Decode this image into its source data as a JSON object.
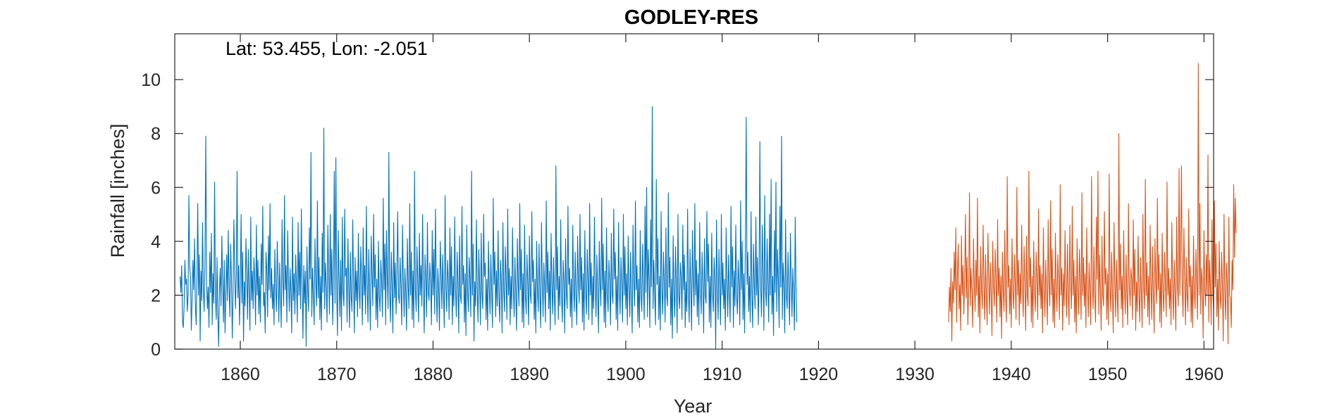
{
  "chart_data": {
    "type": "line",
    "title": "GODLEY-RES",
    "xlabel": "Year",
    "ylabel": "Rainfall [inches]",
    "annotation": "Lat: 53.455, Lon: -2.051",
    "xlim": [
      1853.2,
      1961.0
    ],
    "ylim": [
      0,
      11.7
    ],
    "xticks": [
      1860,
      1870,
      1880,
      1890,
      1900,
      1910,
      1920,
      1930,
      1940,
      1950,
      1960
    ],
    "yticks": [
      0,
      2,
      4,
      6,
      8,
      10
    ],
    "grid": false,
    "legend": "none",
    "series": [
      {
        "color": "#0072bd",
        "x_start": 1853.75,
        "x_step": 0.0833333,
        "values": [
          2.7,
          2.1,
          3.1,
          1.0,
          0.8,
          1.6,
          3.3,
          2.4,
          2.6,
          1.4,
          2.0,
          5.7,
          3.0,
          2.7,
          0.7,
          1.9,
          3.3,
          2.2,
          4.1,
          1.7,
          0.9,
          2.6,
          5.4,
          2.0,
          3.5,
          0.3,
          2.9,
          1.8,
          4.7,
          2.2,
          1.4,
          3.2,
          7.9,
          2.5,
          1.5,
          2.3,
          0.8,
          3.6,
          2.1,
          4.3,
          0.9,
          2.8,
          1.7,
          6.2,
          2.0,
          1.1,
          3.4,
          1.3,
          0.1,
          2.2,
          3.0,
          1.6,
          4.2,
          2.5,
          1.0,
          3.3,
          0.6,
          2.0,
          3.5,
          1.8,
          4.4,
          2.3,
          1.2,
          3.9,
          2.6,
          0.4,
          2.1,
          4.8,
          3.0,
          1.5,
          2.6,
          6.6,
          1.9,
          3.1,
          0.9,
          2.3,
          5.0,
          1.7,
          3.6,
          0.3,
          2.5,
          1.6,
          4.1,
          2.8,
          1.1,
          3.7,
          2.2,
          0.7,
          4.9,
          1.8,
          2.9,
          1.5,
          3.4,
          2.6,
          0.9,
          4.6,
          2.0,
          3.3,
          1.3,
          2.7,
          1.0,
          3.9,
          2.4,
          5.3,
          1.6,
          2.1,
          0.6,
          3.6,
          2.9,
          1.2,
          4.2,
          2.2,
          5.4,
          1.9,
          3.0,
          1.5,
          2.4,
          0.9,
          3.7,
          2.3,
          1.4,
          4.0,
          2.7,
          1.0,
          3.2,
          2.0,
          0.8,
          4.8,
          2.5,
          1.6,
          5.7,
          2.2,
          3.1,
          1.0,
          4.4,
          2.6,
          1.4,
          3.0,
          2.1,
          0.6,
          4.9,
          1.8,
          2.8,
          1.3,
          3.5,
          2.4,
          1.0,
          4.7,
          2.0,
          3.6,
          1.5,
          5.2,
          2.3,
          0.4,
          3.1,
          1.7,
          2.9,
          0.1,
          3.8,
          2.2,
          1.4,
          4.5,
          2.6,
          7.3,
          1.2,
          3.0,
          2.0,
          0.9,
          4.1,
          2.5,
          1.6,
          5.5,
          1.9,
          3.4,
          1.1,
          2.7,
          0.7,
          4.3,
          2.1,
          8.2,
          1.5,
          3.2,
          2.4,
          1.0,
          4.6,
          2.8,
          1.3,
          5.0,
          2.0,
          3.7,
          0.9,
          2.5,
          6.6,
          1.7,
          7.1,
          2.3,
          0.5,
          4.4,
          2.6,
          1.2,
          3.3,
          0.7,
          4.9,
          2.1,
          1.6,
          5.2,
          2.7,
          3.0,
          1.0,
          4.1,
          2.3,
          0.8,
          3.6,
          2.0,
          1.4,
          4.8,
          2.5,
          0.6,
          3.4,
          1.8,
          2.9,
          1.2,
          4.3,
          2.2,
          1.5,
          3.8,
          2.6,
          0.9,
          4.5,
          2.0,
          3.1,
          1.3,
          5.3,
          2.4,
          1.0,
          3.7,
          2.1,
          0.7,
          4.2,
          2.8,
          1.6,
          5.0,
          2.3,
          3.5,
          1.1,
          2.6,
          0.8,
          4.0,
          2.0,
          1.4,
          3.3,
          2.5,
          1.2,
          5.6,
          2.2,
          3.9,
          0.9,
          4.4,
          2.7,
          1.5,
          7.3,
          2.1,
          1.0,
          3.6,
          2.4,
          0.6,
          4.7,
          1.9,
          3.2,
          1.3,
          2.8,
          5.1,
          2.0,
          1.7,
          3.4,
          2.3,
          0.9,
          4.6,
          2.6,
          1.2,
          3.0,
          2.1,
          0.7,
          4.1,
          2.4,
          1.5,
          5.4,
          2.0,
          3.6,
          1.1,
          2.9,
          0.8,
          6.6,
          2.2,
          1.4,
          3.8,
          2.5,
          1.0,
          4.3,
          2.0,
          3.1,
          1.6,
          5.0,
          2.3,
          0.6,
          3.5,
          2.7,
          1.2,
          4.7,
          2.1,
          1.8,
          3.2,
          2.5,
          0.9,
          4.4,
          2.0,
          3.7,
          1.3,
          5.2,
          2.4,
          1.0,
          3.0,
          2.2,
          0.7,
          4.0,
          2.8,
          1.5,
          3.5,
          2.1,
          0.8,
          5.7,
          2.3,
          1.4,
          3.3,
          2.6,
          1.1,
          4.5,
          2.0,
          3.8,
          0.9,
          2.7,
          1.6,
          4.9,
          2.2,
          1.2,
          3.6,
          2.5,
          0.6,
          4.2,
          2.0,
          1.7,
          5.3,
          2.4,
          3.1,
          1.0,
          2.8,
          0.5,
          4.6,
          2.1,
          1.4,
          3.4,
          2.6,
          1.2,
          6.6,
          2.0,
          3.9,
          0.3,
          2.5,
          1.6,
          4.8,
          2.2,
          1.0,
          3.7,
          2.4,
          0.9,
          4.3,
          2.0,
          1.5,
          5.0,
          2.7,
          3.2,
          1.1,
          2.6,
          0.7,
          4.0,
          2.3,
          1.3,
          3.5,
          2.1,
          0.8,
          5.6,
          2.4,
          3.6,
          1.2,
          2.9,
          1.6,
          4.4,
          2.0,
          1.0,
          3.3,
          2.5,
          0.6,
          4.7,
          2.2,
          1.4,
          3.8,
          2.6,
          1.1,
          5.2,
          2.0,
          3.0,
          0.9,
          2.7,
          1.5,
          4.5,
          2.3,
          1.2,
          3.4,
          2.1,
          0.7,
          4.1,
          2.5,
          1.6,
          5.4,
          2.2,
          3.7,
          1.0,
          2.8,
          0.8,
          4.6,
          2.0,
          1.3,
          3.5,
          2.4,
          0.9,
          4.2,
          2.1,
          1.7,
          5.1,
          2.5,
          3.3,
          1.1,
          2.6,
          0.6,
          4.0,
          2.2,
          1.4,
          3.9,
          2.0,
          0.8,
          4.7,
          2.6,
          1.2,
          3.2,
          2.3,
          1.0,
          5.5,
          2.1,
          3.6,
          1.5,
          2.9,
          0.7,
          4.3,
          2.4,
          1.3,
          3.4,
          2.0,
          0.9,
          6.8,
          2.2,
          3.8,
          1.1,
          2.7,
          1.6,
          4.8,
          2.0,
          1.0,
          3.3,
          2.5,
          0.6,
          4.1,
          2.1,
          1.5,
          5.3,
          2.4,
          3.0,
          1.2,
          2.6,
          0.8,
          4.6,
          2.3,
          1.4,
          3.6,
          2.0,
          0.9,
          4.2,
          2.5,
          1.7,
          5.0,
          2.2,
          3.4,
          1.0,
          2.8,
          0.7,
          4.4,
          2.1,
          1.3,
          3.7,
          2.6,
          1.1,
          5.4,
          2.0,
          3.2,
          0.9,
          2.7,
          1.5,
          4.9,
          2.3,
          1.2,
          3.5,
          2.1,
          0.6,
          4.0,
          2.4,
          1.6,
          5.6,
          2.2,
          3.9,
          1.0,
          2.9,
          0.8,
          4.5,
          2.0,
          1.4,
          3.3,
          2.5,
          0.9,
          4.3,
          2.1,
          1.7,
          5.2,
          2.6,
          3.6,
          1.1,
          2.7,
          0.7,
          4.7,
          2.2,
          1.3,
          3.4,
          2.4,
          1.0,
          5.0,
          2.0,
          3.8,
          1.5,
          2.8,
          0.9,
          4.2,
          2.3,
          1.2,
          3.6,
          2.1,
          0.6,
          4.6,
          2.5,
          1.6,
          5.5,
          2.2,
          3.1,
          1.0,
          2.6,
          0.8,
          4.4,
          2.0,
          1.4,
          3.9,
          2.4,
          1.1,
          5.3,
          2.1,
          6.0,
          1.2,
          3.7,
          2.6,
          0.8,
          4.8,
          2.3,
          9.0,
          1.5,
          3.3,
          2.0,
          0.9,
          6.3,
          2.4,
          4.1,
          1.1,
          2.7,
          0.7,
          5.1,
          2.2,
          1.3,
          3.6,
          2.5,
          1.0,
          4.5,
          2.0,
          1.6,
          5.8,
          2.3,
          3.4,
          0.9,
          2.6,
          0.4,
          4.2,
          2.1,
          1.2,
          3.8,
          2.4,
          0.6,
          5.0,
          2.0,
          1.5,
          3.2,
          2.7,
          1.1,
          4.6,
          2.2,
          3.5,
          0.8,
          2.5,
          1.4,
          5.2,
          2.1,
          1.0,
          3.7,
          2.3,
          0.7,
          4.4,
          2.6,
          1.6,
          5.4,
          2.0,
          3.3,
          1.2,
          2.8,
          0.9,
          4.7,
          2.2,
          1.3,
          3.6,
          2.4,
          0.6,
          4.1,
          2.0,
          1.7,
          5.1,
          2.5,
          3.9,
          1.0,
          2.7,
          0.8,
          4.3,
          2.1,
          1.4,
          3.4,
          2.6,
          0.0,
          4.8,
          2.2,
          1.1,
          3.7,
          2.3,
          0.9,
          5.0,
          2.0,
          3.2,
          1.5,
          2.6,
          0.7,
          4.5,
          2.4,
          1.2,
          3.5,
          2.1,
          1.0,
          5.3,
          2.3,
          3.8,
          0.8,
          2.9,
          1.6,
          4.6,
          2.0,
          1.3,
          3.3,
          2.5,
          0.9,
          5.5,
          2.2,
          4.0,
          1.1,
          2.8,
          0.6,
          4.2,
          8.6,
          2.4,
          3.6,
          1.4,
          2.7,
          1.0,
          5.1,
          2.1,
          0.8,
          3.9,
          2.5,
          1.5,
          4.9,
          2.0,
          3.4,
          0.9,
          2.6,
          7.7,
          2.3,
          1.2,
          4.6,
          2.8,
          0.7,
          5.7,
          2.2,
          1.6,
          4.1,
          2.4,
          1.0,
          5.0,
          2.0,
          6.3,
          1.3,
          2.7,
          0.5,
          4.4,
          2.1,
          6.2,
          1.4,
          3.7,
          2.6,
          0.8,
          5.3,
          2.3,
          7.9,
          1.1,
          3.2,
          2.4,
          0.6,
          4.8,
          2.0,
          1.5,
          3.6,
          2.2,
          0.9,
          4.3,
          2.5,
          1.2,
          3.0,
          2.1,
          0.7,
          4.9,
          2.3,
          1.0
        ]
      },
      {
        "color": "#d95319",
        "x_start": 1933.5,
        "x_step": 0.0833333,
        "values": [
          1.0,
          2.3,
          1.4,
          3.0,
          0.3,
          2.5,
          1.7,
          3.6,
          2.2,
          4.5,
          1.0,
          2.8,
          3.9,
          1.5,
          2.4,
          0.7,
          4.2,
          2.0,
          3.1,
          1.3,
          2.6,
          5.0,
          1.9,
          3.4,
          0.9,
          2.3,
          5.8,
          1.6,
          3.0,
          2.1,
          0.8,
          4.1,
          2.5,
          1.4,
          3.3,
          2.0,
          5.6,
          1.2,
          2.7,
          0.6,
          3.8,
          2.2,
          1.5,
          4.6,
          2.4,
          1.1,
          3.5,
          2.0,
          0.9,
          4.3,
          2.6,
          1.3,
          3.2,
          2.1,
          0.5,
          4.0,
          2.3,
          1.6,
          3.7,
          2.5,
          1.0,
          4.8,
          2.0,
          3.0,
          1.2,
          2.7,
          0.4,
          3.6,
          2.2,
          1.4,
          4.4,
          2.0,
          1.0,
          6.4,
          2.3,
          3.1,
          1.3,
          2.6,
          0.8,
          4.1,
          2.1,
          1.5,
          3.5,
          2.4,
          1.1,
          6.0,
          2.0,
          3.3,
          0.9,
          2.8,
          1.7,
          4.6,
          2.2,
          1.2,
          3.8,
          2.5,
          0.7,
          4.2,
          2.0,
          1.6,
          6.6,
          2.3,
          3.4,
          1.0,
          2.7,
          0.8,
          4.0,
          2.1,
          1.4,
          3.6,
          2.6,
          1.1,
          5.2,
          2.0,
          3.1,
          1.5,
          2.8,
          0.6,
          4.5,
          2.3,
          1.2,
          3.3,
          2.1,
          0.9,
          4.8,
          2.4,
          1.6,
          5.5,
          2.0,
          3.7,
          1.0,
          2.6,
          0.8,
          4.3,
          2.2,
          1.4,
          3.5,
          2.5,
          1.1,
          6.1,
          2.0,
          3.0,
          0.7,
          2.8,
          1.6,
          4.4,
          2.3,
          1.2,
          3.9,
          2.1,
          0.9,
          4.6,
          2.4,
          1.5,
          5.3,
          2.0,
          3.3,
          1.0,
          2.7,
          0.6,
          4.1,
          2.2,
          1.3,
          3.7,
          2.5,
          1.1,
          5.8,
          2.0,
          3.4,
          1.6,
          2.8,
          0.8,
          4.5,
          2.3,
          1.2,
          3.2,
          2.1,
          0.9,
          6.4,
          2.4,
          1.5,
          3.8,
          2.0,
          1.0,
          4.9,
          2.6,
          6.6,
          1.3,
          3.5,
          2.2,
          0.7,
          4.2,
          2.0,
          1.6,
          5.1,
          2.4,
          3.0,
          1.1,
          2.8,
          0.9,
          6.5,
          2.3,
          1.4,
          3.6,
          2.1,
          0.6,
          4.7,
          2.5,
          1.2,
          3.3,
          2.0,
          1.0,
          8.0,
          2.2,
          3.9,
          1.5,
          2.7,
          0.8,
          4.4,
          2.3,
          1.3,
          3.5,
          2.0,
          0.9,
          5.4,
          2.4,
          1.6,
          3.0,
          2.6,
          1.1,
          4.8,
          2.0,
          3.7,
          0.7,
          2.5,
          1.4,
          4.2,
          2.2,
          1.0,
          3.4,
          2.1,
          0.8,
          5.0,
          2.3,
          1.5,
          6.3,
          2.0,
          3.2,
          1.2,
          2.7,
          0.9,
          4.6,
          2.4,
          1.1,
          3.8,
          2.0,
          0.6,
          4.1,
          2.5,
          1.7,
          5.6,
          2.2,
          3.5,
          1.0,
          2.8,
          0.8,
          4.3,
          2.1,
          1.4,
          3.6,
          2.5,
          1.2,
          6.2,
          2.0,
          3.0,
          1.5,
          2.6,
          0.9,
          4.7,
          2.3,
          1.1,
          3.3,
          2.1,
          0.7,
          4.9,
          2.4,
          1.6,
          6.7,
          2.0,
          3.8,
          6.8,
          2.2,
          1.2,
          4.5,
          2.6,
          0.9,
          3.4,
          2.0,
          1.4,
          5.2,
          2.3,
          3.1,
          1.0,
          2.7,
          0.8,
          4.2,
          2.1,
          1.5,
          3.7,
          2.4,
          1.1,
          10.6,
          2.0,
          5.4,
          1.3,
          3.0,
          2.5,
          0.4,
          4.4,
          2.2,
          1.6,
          3.5,
          2.0,
          7.2,
          1.0,
          3.3,
          2.4,
          0.9,
          4.8,
          2.1,
          1.4,
          5.5,
          2.3,
          3.9,
          1.2,
          2.6,
          0.7,
          4.0,
          2.0,
          1.5,
          3.6,
          2.4,
          0.3,
          5.0,
          2.2,
          1.1,
          3.2,
          2.5,
          0.2,
          4.9,
          2.0,
          1.9,
          0.8,
          3.3,
          2.2,
          6.1,
          3.4,
          5.6,
          4.3
        ]
      }
    ]
  }
}
